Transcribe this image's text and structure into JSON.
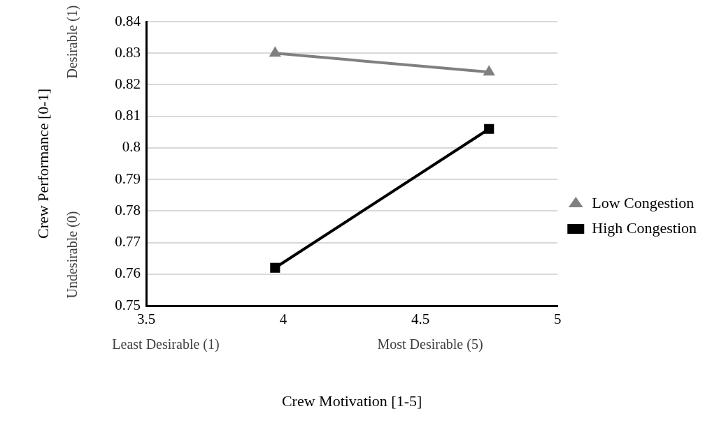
{
  "chart_data": {
    "type": "line",
    "xlabel": "Crew Motivation [1-5]",
    "ylabel": "Crew Performance [0-1]",
    "x": [
      3.97,
      4.75
    ],
    "series": [
      {
        "name": "Low Congestion",
        "color": "#808080",
        "marker": "triangle",
        "values": [
          0.83,
          0.824
        ]
      },
      {
        "name": "High Congestion",
        "color": "#000000",
        "marker": "square",
        "values": [
          0.762,
          0.806
        ]
      }
    ],
    "xlim": [
      3.5,
      5
    ],
    "xticks": [
      3.5,
      4,
      4.5,
      5
    ],
    "ylim": [
      0.75,
      0.84
    ],
    "yticks": [
      0.75,
      0.76,
      0.77,
      0.78,
      0.79,
      0.8,
      0.81,
      0.82,
      0.83,
      0.84
    ],
    "grid": "y",
    "legend": "right",
    "line_style": "solid",
    "annotations": [
      "Desirable (1)",
      "Undesirable (0)",
      "Least Desirable (1)",
      "Most Desirable (5)"
    ]
  }
}
